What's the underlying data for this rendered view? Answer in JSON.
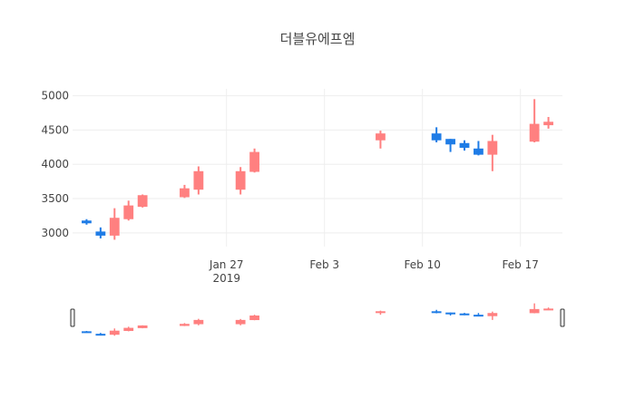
{
  "chart_data": {
    "type": "candlestick",
    "title": "더블유에프엠",
    "xlabel": "",
    "ylabel": "",
    "x_range": [
      "2019-01-16",
      "2019-02-20"
    ],
    "ylim": [
      2800,
      5100
    ],
    "y_ticks": [
      3000,
      3500,
      4000,
      4500,
      5000
    ],
    "x_ticks": [
      {
        "date": "2019-01-27",
        "label": "Jan 27",
        "sublabel": "2019"
      },
      {
        "date": "2019-02-03",
        "label": "Feb 3",
        "sublabel": ""
      },
      {
        "date": "2019-02-10",
        "label": "Feb 10",
        "sublabel": ""
      },
      {
        "date": "2019-02-17",
        "label": "Feb 17",
        "sublabel": ""
      }
    ],
    "grid": true,
    "rangeslider": true,
    "colors": {
      "increasing": "#ff8080",
      "decreasing": "#1f7ce6"
    },
    "candles": [
      {
        "date": "2019-01-17",
        "open": 3180,
        "high": 3200,
        "low": 3120,
        "close": 3140
      },
      {
        "date": "2019-01-18",
        "open": 3020,
        "high": 3080,
        "low": 2920,
        "close": 2960
      },
      {
        "date": "2019-01-19",
        "open": 2960,
        "high": 3360,
        "low": 2900,
        "close": 3220
      },
      {
        "date": "2019-01-20",
        "open": 3200,
        "high": 3470,
        "low": 3180,
        "close": 3400
      },
      {
        "date": "2019-01-21",
        "open": 3380,
        "high": 3560,
        "low": 3370,
        "close": 3550
      },
      {
        "date": "2019-01-24",
        "open": 3520,
        "high": 3700,
        "low": 3510,
        "close": 3650
      },
      {
        "date": "2019-01-25",
        "open": 3630,
        "high": 3970,
        "low": 3560,
        "close": 3900
      },
      {
        "date": "2019-01-28",
        "open": 3630,
        "high": 3960,
        "low": 3560,
        "close": 3900
      },
      {
        "date": "2019-01-29",
        "open": 3890,
        "high": 4230,
        "low": 3880,
        "close": 4180
      },
      {
        "date": "2019-02-07",
        "open": 4350,
        "high": 4490,
        "low": 4230,
        "close": 4450
      },
      {
        "date": "2019-02-11",
        "open": 4450,
        "high": 4540,
        "low": 4320,
        "close": 4350
      },
      {
        "date": "2019-02-12",
        "open": 4370,
        "high": 4370,
        "low": 4180,
        "close": 4290
      },
      {
        "date": "2019-02-13",
        "open": 4310,
        "high": 4350,
        "low": 4200,
        "close": 4240
      },
      {
        "date": "2019-02-14",
        "open": 4230,
        "high": 4340,
        "low": 4130,
        "close": 4140
      },
      {
        "date": "2019-02-15",
        "open": 4140,
        "high": 4430,
        "low": 3900,
        "close": 4340
      },
      {
        "date": "2019-02-18",
        "open": 4330,
        "high": 4950,
        "low": 4320,
        "close": 4590
      },
      {
        "date": "2019-02-19",
        "open": 4570,
        "high": 4690,
        "low": 4520,
        "close": 4620
      }
    ]
  }
}
